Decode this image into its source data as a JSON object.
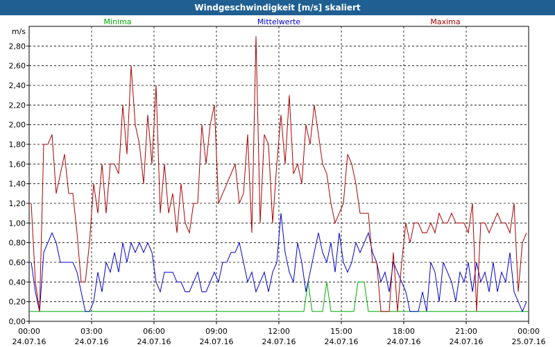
{
  "window": {
    "title": "Windgeschwindigkeit [m/s] skaliert"
  },
  "chart_data": {
    "type": "line",
    "title": "Windgeschwindigkeit [m/s] skaliert",
    "ylabel": "m/s",
    "xlabel": "",
    "ylim": [
      0,
      3.0
    ],
    "xlim_hours": [
      0,
      24
    ],
    "grid": true,
    "legend_placement": "top",
    "y_ticks": [
      "0,00",
      "0,20",
      "0,40",
      "0,60",
      "0,80",
      "1,00",
      "1,20",
      "1,40",
      "1,60",
      "1,80",
      "2,00",
      "2,20",
      "2,40",
      "2,60",
      "2,80"
    ],
    "x_ticks": [
      {
        "time": "00:00",
        "date": "24.07.16"
      },
      {
        "time": "03:00",
        "date": "24.07.16"
      },
      {
        "time": "06:00",
        "date": "24.07.16"
      },
      {
        "time": "09:00",
        "date": "24.07.16"
      },
      {
        "time": "12:00",
        "date": "24.07.16"
      },
      {
        "time": "15:00",
        "date": "24.07.16"
      },
      {
        "time": "18:00",
        "date": "24.07.16"
      },
      {
        "time": "21:00",
        "date": "24.07.16"
      },
      {
        "time": "00:00",
        "date": "25.07.16"
      }
    ],
    "series": [
      {
        "name": "Minima",
        "color": "#00aa00",
        "x": [
          0,
          13.2,
          13.4,
          13.6,
          14.1,
          14.3,
          14.5,
          15.6,
          15.8,
          16.1,
          16.3,
          24
        ],
        "y": [
          0.1,
          0.1,
          0.4,
          0.1,
          0.1,
          0.4,
          0.1,
          0.1,
          0.4,
          0.4,
          0.1,
          0.1
        ]
      },
      {
        "name": "Mittelwerte",
        "color": "#0000cc",
        "x": [
          0.1,
          0.3,
          0.5,
          0.7,
          0.9,
          1.1,
          1.3,
          1.5,
          1.7,
          1.9,
          2.1,
          2.3,
          2.5,
          2.7,
          2.9,
          3.1,
          3.3,
          3.5,
          3.7,
          3.9,
          4.1,
          4.3,
          4.5,
          4.7,
          4.9,
          5.1,
          5.3,
          5.5,
          5.7,
          5.9,
          6.1,
          6.3,
          6.5,
          6.7,
          6.9,
          7.1,
          7.3,
          7.5,
          7.7,
          7.9,
          8.1,
          8.3,
          8.5,
          8.7,
          8.9,
          9.1,
          9.3,
          9.5,
          9.7,
          9.9,
          10.1,
          10.3,
          10.5,
          10.7,
          10.9,
          11.1,
          11.3,
          11.5,
          11.7,
          11.9,
          12.1,
          12.3,
          12.5,
          12.7,
          12.9,
          13.1,
          13.3,
          13.5,
          13.7,
          13.9,
          14.1,
          14.3,
          14.5,
          14.7,
          14.9,
          15.1,
          15.3,
          15.5,
          15.7,
          15.9,
          16.1,
          16.3,
          16.5,
          16.7,
          16.9,
          17.1,
          17.3,
          17.5,
          17.7,
          17.9,
          18.1,
          18.3,
          18.5,
          18.7,
          18.9,
          19.1,
          19.3,
          19.5,
          19.7,
          19.9,
          20.1,
          20.3,
          20.5,
          20.7,
          20.9,
          21.1,
          21.3,
          21.5,
          21.7,
          21.9,
          22.1,
          22.3,
          22.5,
          22.7,
          22.9,
          23.1,
          23.3,
          23.5,
          23.7,
          23.9
        ],
        "y": [
          0.6,
          0.3,
          0.1,
          0.7,
          0.8,
          0.9,
          0.8,
          0.6,
          0.6,
          0.6,
          0.6,
          0.5,
          0.3,
          0.1,
          0.1,
          0.2,
          0.5,
          0.3,
          0.6,
          0.5,
          0.7,
          0.5,
          0.8,
          0.6,
          0.8,
          0.7,
          0.8,
          0.7,
          0.8,
          0.7,
          0.4,
          0.3,
          0.5,
          0.5,
          0.5,
          0.4,
          0.4,
          0.3,
          0.3,
          0.4,
          0.5,
          0.3,
          0.3,
          0.4,
          0.5,
          0.4,
          0.6,
          0.6,
          0.7,
          0.7,
          0.8,
          0.6,
          0.4,
          0.5,
          0.3,
          0.4,
          0.5,
          0.3,
          0.5,
          0.6,
          1.1,
          0.7,
          0.5,
          0.4,
          0.8,
          0.6,
          0.3,
          0.5,
          0.7,
          0.9,
          0.7,
          0.6,
          0.8,
          0.5,
          0.9,
          0.6,
          0.5,
          0.6,
          0.8,
          0.7,
          0.8,
          0.9,
          0.7,
          0.6,
          0.4,
          0.5,
          0.3,
          0.6,
          0.5,
          0.4,
          0.3,
          0.1,
          0.1,
          0.1,
          0.3,
          0.1,
          0.6,
          0.5,
          0.2,
          0.6,
          0.5,
          0.4,
          0.2,
          0.5,
          0.4,
          0.6,
          0.3,
          0.6,
          0.4,
          0.5,
          0.3,
          0.6,
          0.3,
          0.5,
          0.4,
          0.7,
          0.3,
          0.2,
          0.1,
          0.2
        ]
      },
      {
        "name": "Maxima",
        "color": "#aa0000",
        "x": [
          0.1,
          0.3,
          0.5,
          0.7,
          0.9,
          1.1,
          1.3,
          1.5,
          1.7,
          1.9,
          2.1,
          2.3,
          2.5,
          2.7,
          2.9,
          3.1,
          3.3,
          3.5,
          3.7,
          3.9,
          4.1,
          4.3,
          4.5,
          4.7,
          4.9,
          5.1,
          5.3,
          5.5,
          5.7,
          5.9,
          6.1,
          6.3,
          6.5,
          6.7,
          6.9,
          7.1,
          7.3,
          7.5,
          7.7,
          7.9,
          8.1,
          8.3,
          8.5,
          8.7,
          8.9,
          9.1,
          9.3,
          9.5,
          9.7,
          9.9,
          10.1,
          10.3,
          10.5,
          10.7,
          10.9,
          11.1,
          11.3,
          11.5,
          11.7,
          11.9,
          12.1,
          12.3,
          12.5,
          12.7,
          12.9,
          13.1,
          13.3,
          13.5,
          13.7,
          13.9,
          14.1,
          14.3,
          14.5,
          14.7,
          14.9,
          15.1,
          15.3,
          15.5,
          15.7,
          15.9,
          16.1,
          16.3,
          16.5,
          16.7,
          16.9,
          17.1,
          17.3,
          17.5,
          17.7,
          17.9,
          18.1,
          18.3,
          18.5,
          18.7,
          18.9,
          19.1,
          19.3,
          19.5,
          19.7,
          19.9,
          20.1,
          20.3,
          20.5,
          20.7,
          20.9,
          21.1,
          21.3,
          21.5,
          21.7,
          21.9,
          22.1,
          22.3,
          22.5,
          22.7,
          22.9,
          23.1,
          23.3,
          23.5,
          23.7,
          23.9
        ],
        "y": [
          1.2,
          0.4,
          0.1,
          1.8,
          1.8,
          1.9,
          1.3,
          1.5,
          1.7,
          1.3,
          1.3,
          0.9,
          0.4,
          0.4,
          0.8,
          1.4,
          1.1,
          1.6,
          1.1,
          1.6,
          1.6,
          1.5,
          2.2,
          1.7,
          2.6,
          2.0,
          1.8,
          1.4,
          2.1,
          1.6,
          2.4,
          1.1,
          1.6,
          1.1,
          1.3,
          0.9,
          1.4,
          1.0,
          0.9,
          1.2,
          1.2,
          2.0,
          1.6,
          2.0,
          2.2,
          1.2,
          1.3,
          1.4,
          1.5,
          1.6,
          1.2,
          1.3,
          1.9,
          0.9,
          2.9,
          1.0,
          1.9,
          1.8,
          1.0,
          1.6,
          2.1,
          1.6,
          2.3,
          1.5,
          1.6,
          1.4,
          2.0,
          1.8,
          2.2,
          1.9,
          1.6,
          1.5,
          1.2,
          1.0,
          1.1,
          1.2,
          1.7,
          1.6,
          1.4,
          1.1,
          1.1,
          1.1,
          0.6,
          0.6,
          0.1,
          0.1,
          0.1,
          0.7,
          0.1,
          0.6,
          1.0,
          0.8,
          1.0,
          1.0,
          0.9,
          0.9,
          1.0,
          0.9,
          1.1,
          1.0,
          1.0,
          1.1,
          1.0,
          1.0,
          1.0,
          0.9,
          1.2,
          0.1,
          1.0,
          1.0,
          0.9,
          1.0,
          1.1,
          1.0,
          1.0,
          0.9,
          1.2,
          0.3,
          0.8,
          0.9
        ]
      }
    ]
  }
}
